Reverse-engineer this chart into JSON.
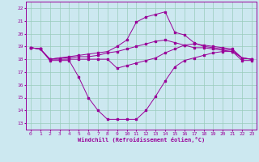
{
  "xlabel": "Windchill (Refroidissement éolien,°C)",
  "bg_color": "#cce8f0",
  "line_color": "#990099",
  "grid_color": "#99ccbb",
  "x_ticks": [
    0,
    1,
    2,
    3,
    4,
    5,
    6,
    7,
    8,
    9,
    10,
    11,
    12,
    13,
    14,
    15,
    16,
    17,
    18,
    19,
    20,
    21,
    22,
    23
  ],
  "y_ticks": [
    13,
    14,
    15,
    16,
    17,
    18,
    19,
    20,
    21,
    22
  ],
  "ylim": [
    12.5,
    22.5
  ],
  "xlim": [
    -0.5,
    23.5
  ],
  "line1_x": [
    0,
    1,
    2,
    3,
    4,
    5,
    6,
    7,
    8,
    9,
    10,
    11,
    12,
    13,
    14,
    15,
    16,
    17,
    18,
    19,
    20,
    21,
    22,
    23
  ],
  "line1_y": [
    18.9,
    18.8,
    17.9,
    17.9,
    17.9,
    16.6,
    15.0,
    14.0,
    13.3,
    13.3,
    13.3,
    13.3,
    14.0,
    15.1,
    16.3,
    17.4,
    17.9,
    18.1,
    18.3,
    18.5,
    18.6,
    18.6,
    17.9,
    17.9
  ],
  "line2_x": [
    0,
    1,
    2,
    3,
    4,
    5,
    6,
    7,
    8,
    9,
    10,
    11,
    12,
    13,
    14,
    15,
    16,
    17,
    18,
    19,
    20,
    21,
    22,
    23
  ],
  "line2_y": [
    18.9,
    18.8,
    18.0,
    18.1,
    18.1,
    18.2,
    18.2,
    18.3,
    18.5,
    18.6,
    18.8,
    19.0,
    19.2,
    19.4,
    19.5,
    19.3,
    19.1,
    18.9,
    18.9,
    18.8,
    18.7,
    18.6,
    18.1,
    18.0
  ],
  "line3_x": [
    0,
    1,
    2,
    3,
    4,
    5,
    6,
    7,
    8,
    9,
    10,
    11,
    12,
    13,
    14,
    15,
    16,
    17,
    18,
    19,
    20,
    21,
    22,
    23
  ],
  "line3_y": [
    18.9,
    18.8,
    18.0,
    18.1,
    18.2,
    18.3,
    18.4,
    18.5,
    18.6,
    19.0,
    19.5,
    20.9,
    21.3,
    21.5,
    21.7,
    20.1,
    19.9,
    19.3,
    19.0,
    18.9,
    18.8,
    18.7,
    18.1,
    18.0
  ],
  "line4_x": [
    0,
    1,
    2,
    3,
    4,
    5,
    6,
    7,
    8,
    9,
    10,
    11,
    12,
    13,
    14,
    15,
    16,
    17,
    18,
    19,
    20,
    21,
    22,
    23
  ],
  "line4_y": [
    18.9,
    18.8,
    18.0,
    18.0,
    18.0,
    18.0,
    18.0,
    18.0,
    18.0,
    17.3,
    17.5,
    17.7,
    17.9,
    18.1,
    18.5,
    18.8,
    19.1,
    19.2,
    19.1,
    19.0,
    18.9,
    18.8,
    18.1,
    18.0
  ]
}
